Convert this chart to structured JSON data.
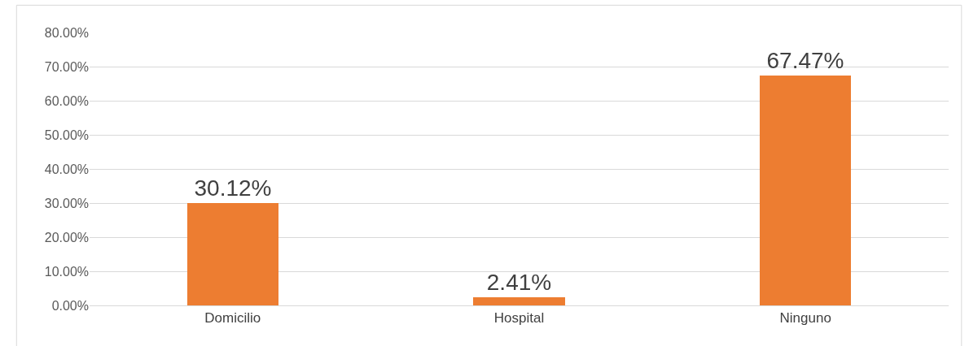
{
  "chart_data": {
    "type": "bar",
    "categories": [
      "Domicilio",
      "Hospital",
      "Ninguno"
    ],
    "values": [
      30.12,
      2.41,
      67.47
    ],
    "value_labels": [
      "30.12%",
      "2.41%",
      "67.47%"
    ],
    "color": "#ed7d31",
    "ylim": [
      0,
      80
    ],
    "yticks": [
      {
        "value": 0,
        "label": "0.00%"
      },
      {
        "value": 10,
        "label": "10.00%"
      },
      {
        "value": 20,
        "label": "20.00%"
      },
      {
        "value": 30,
        "label": "30.00%"
      },
      {
        "value": 40,
        "label": "40.00%"
      },
      {
        "value": 50,
        "label": "50.00%"
      },
      {
        "value": 60,
        "label": "60.00%"
      },
      {
        "value": 70,
        "label": "70.00%"
      },
      {
        "value": 80,
        "label": "80.00%"
      }
    ],
    "grid": "y",
    "legend": false
  }
}
